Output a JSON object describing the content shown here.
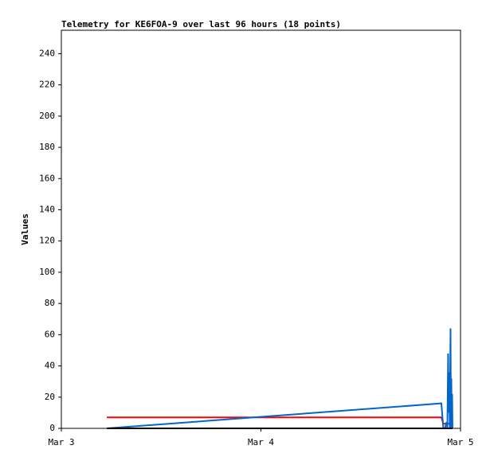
{
  "chart_data": {
    "type": "line",
    "title": "Telemetry for KE6FOA-9 over last 96 hours (18 points)",
    "y_label": "Values",
    "x": [
      0.228,
      1.904,
      1.914,
      1.922,
      1.93,
      1.934,
      1.938,
      1.94,
      1.942,
      1.944,
      1.946,
      1.948,
      1.95,
      1.952,
      1.954,
      1.956,
      1.958,
      1.96
    ],
    "series": [
      {
        "color": "#ff0000",
        "values": [
          7,
          7,
          3,
          3,
          3,
          3,
          3,
          3,
          3,
          3,
          3,
          3,
          3,
          3,
          3,
          3,
          3,
          3
        ]
      },
      {
        "color": "#0066cc",
        "values": [
          0,
          16,
          0,
          0,
          4,
          0,
          48,
          10,
          36,
          20,
          0,
          30,
          64,
          0,
          32,
          0,
          22,
          0
        ]
      },
      {
        "color": "#000000",
        "values": [
          0,
          0,
          0,
          0,
          0,
          0,
          0,
          0,
          0,
          0,
          0,
          0,
          0,
          0,
          0,
          0,
          0,
          0
        ]
      }
    ],
    "xlim": [
      0,
      2
    ],
    "xticks": [
      {
        "value": 0,
        "label": "Mar 3"
      },
      {
        "value": 1,
        "label": "Mar 4"
      },
      {
        "value": 2,
        "label": "Mar 5"
      }
    ],
    "ylim": [
      0,
      255
    ],
    "yticks": [
      0,
      20,
      40,
      60,
      80,
      100,
      120,
      140,
      160,
      180,
      200,
      220,
      240
    ]
  }
}
